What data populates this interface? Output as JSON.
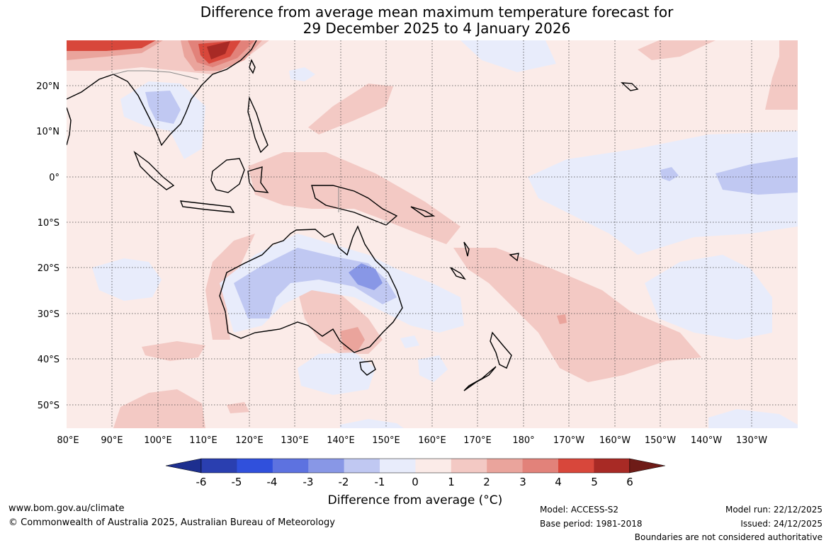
{
  "title": {
    "line1": "Difference from average mean maximum temperature forecast for",
    "line2": "29 December 2025 to 4 January 2026"
  },
  "map": {
    "lat_labels": [
      "20°N",
      "10°N",
      "0°",
      "10°S",
      "20°S",
      "30°S",
      "40°S",
      "50°S"
    ],
    "lon_labels": [
      "80°E",
      "90°E",
      "100°E",
      "110°E",
      "120°E",
      "130°E",
      "140°E",
      "150°E",
      "160°E",
      "170°E",
      "180°",
      "170°W",
      "160°W",
      "150°W",
      "140°W",
      "130°W"
    ]
  },
  "colorbar": {
    "ticks": [
      "-6",
      "-5",
      "-4",
      "-3",
      "-2",
      "-1",
      "0",
      "1",
      "2",
      "3",
      "4",
      "5",
      "6"
    ],
    "colors": [
      "#1d2f8f",
      "#2a3fb0",
      "#3050dc",
      "#5d72e0",
      "#8897e6",
      "#c0c8f2",
      "#e8ecfb",
      "#fbebe8",
      "#f3c9c4",
      "#eaa49c",
      "#e2827a",
      "#d8473b",
      "#a82a25",
      "#6e1b17"
    ],
    "label": "Difference from average (°C)"
  },
  "footer": {
    "website": "www.bom.gov.au/climate",
    "copyright": "© Commonwealth of Australia 2025, Australian Bureau of Meteorology",
    "model": "Model: ACCESS-S2",
    "base_period": "Base period: 1981-2018",
    "model_run": "Model run: 22/12/2025",
    "issued": "Issued: 24/12/2025",
    "disclaimer": "Boundaries are not considered authoritative"
  }
}
